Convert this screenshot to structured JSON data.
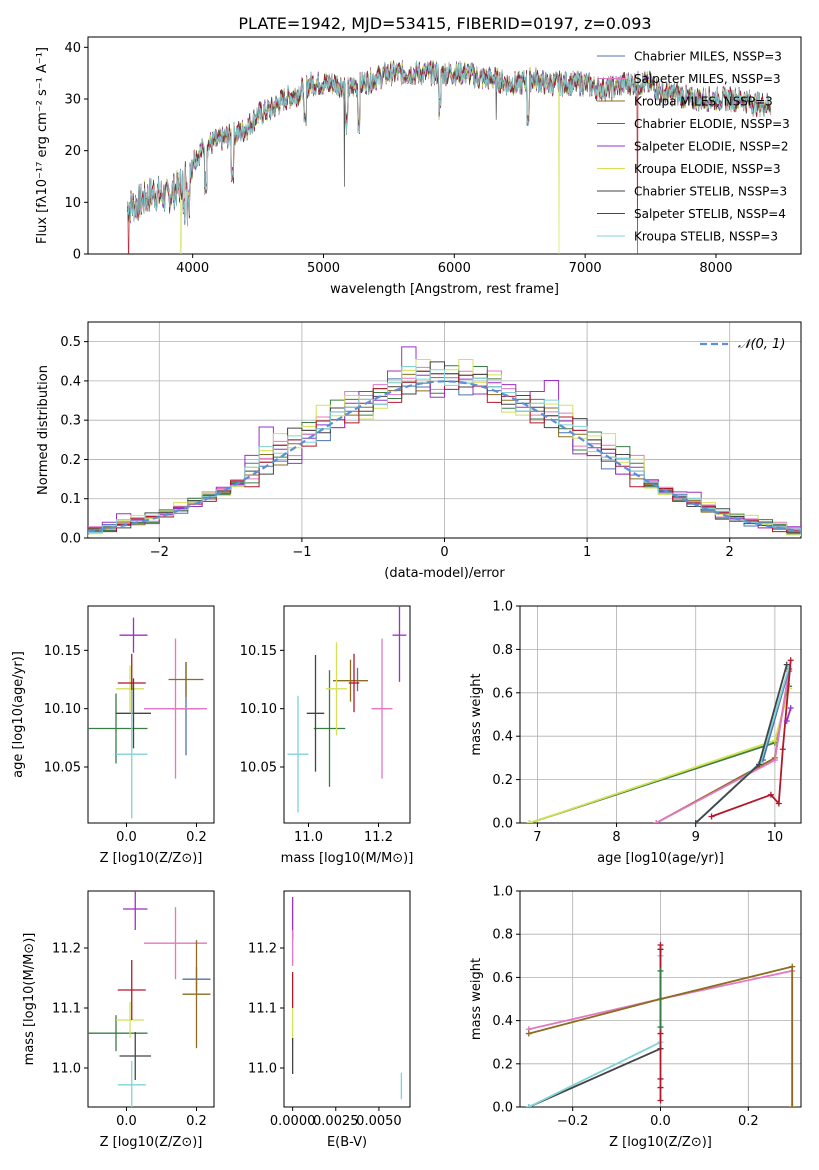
{
  "title": "PLATE=1942, MJD=53415, FIBERID=0197, z=0.093",
  "colors": {
    "Chabrier MILES": "#4c72b0",
    "Salpeter MILES": "#e377c2",
    "Kroupa MILES": "#8c6d1f",
    "Chabrier ELODIE": "#3a7d44",
    "Salpeter ELODIE": "#9b30c8",
    "Kroupa ELODIE": "#d4e157",
    "Chabrier STELIB": "#444444",
    "Salpeter STELIB": "#b2182b",
    "Kroupa STELIB": "#7fd3d6",
    "gauss": "#5b8fd8",
    "orange": "#e8782a"
  },
  "chart_data": [
    {
      "id": "spectrum",
      "type": "line",
      "xlabel": "wavelength [Angstrom, rest frame]",
      "ylabel": "Flux [fλ10⁻¹⁷ erg cm⁻² s⁻¹ A⁻¹]",
      "xlim": [
        3200,
        8650
      ],
      "ylim": [
        0,
        42
      ],
      "xticks": [
        4000,
        5000,
        6000,
        7000,
        8000
      ],
      "yticks": [
        0,
        10,
        20,
        30,
        40
      ],
      "legend_position": "top-right",
      "legend": [
        "Chabrier MILES, NSSP=3",
        "Salpeter MILES, NSSP=3",
        "Kroupa MILES, NSSP=3",
        "Chabrier ELODIE, NSSP=3",
        "Salpeter ELODIE, NSSP=2",
        "Kroupa ELODIE, NSSP=3",
        "Chabrier STELIB, NSSP=3",
        "Salpeter STELIB, NSSP=4",
        "Kroupa STELIB, NSSP=3"
      ],
      "continuum": [
        [
          3500,
          9
        ],
        [
          3600,
          10
        ],
        [
          3700,
          12
        ],
        [
          3800,
          11
        ],
        [
          3900,
          13
        ],
        [
          4000,
          18
        ],
        [
          4100,
          21
        ],
        [
          4200,
          22
        ],
        [
          4300,
          23
        ],
        [
          4400,
          24
        ],
        [
          4500,
          27
        ],
        [
          4600,
          28
        ],
        [
          4700,
          30
        ],
        [
          4800,
          31
        ],
        [
          4900,
          33
        ],
        [
          5000,
          33
        ],
        [
          5100,
          33
        ],
        [
          5200,
          32
        ],
        [
          5300,
          33
        ],
        [
          5400,
          34
        ],
        [
          5500,
          35
        ],
        [
          5600,
          35
        ],
        [
          5700,
          35
        ],
        [
          5800,
          35
        ],
        [
          5900,
          35
        ],
        [
          6000,
          35
        ],
        [
          6100,
          35
        ],
        [
          6200,
          34
        ],
        [
          6300,
          34
        ],
        [
          6400,
          33
        ],
        [
          6500,
          33
        ],
        [
          6600,
          34
        ],
        [
          6700,
          33
        ],
        [
          6800,
          33
        ],
        [
          6900,
          33
        ],
        [
          7000,
          33
        ],
        [
          7100,
          32
        ],
        [
          7200,
          32
        ],
        [
          7300,
          33
        ],
        [
          7400,
          33
        ],
        [
          7500,
          33
        ],
        [
          7600,
          31
        ],
        [
          7700,
          31
        ],
        [
          7800,
          30
        ],
        [
          7900,
          30
        ],
        [
          8000,
          30
        ],
        [
          8100,
          30
        ],
        [
          8200,
          30
        ],
        [
          8300,
          29
        ],
        [
          8400,
          29
        ]
      ],
      "absorption_lines": [
        3934,
        3969,
        4101,
        4304,
        4861,
        5175,
        5270,
        5890,
        6563
      ],
      "drops": [
        [
          3510,
          "Salpeter STELIB"
        ],
        [
          3910,
          "Kroupa ELODIE"
        ],
        [
          6800,
          "Kroupa ELODIE"
        ],
        [
          7400,
          "Salpeter STELIB"
        ]
      ]
    },
    {
      "id": "residuals",
      "type": "histogram",
      "xlabel": "(data-model)/error",
      "ylabel": "Normed distribution",
      "xlim": [
        -2.5,
        2.5
      ],
      "ylim": [
        0,
        0.55
      ],
      "xticks": [
        -2,
        -1,
        0,
        1,
        2
      ],
      "yticks": [
        0.0,
        0.1,
        0.2,
        0.3,
        0.4,
        0.5
      ],
      "grid": true,
      "legend_position": "top-right",
      "gauss_label": "𝒩(0, 1)",
      "bin_width": 0.1,
      "series": [
        {
          "name": "Chabrier MILES",
          "jitter": [
            0.01,
            -0.02,
            0.03,
            0.0,
            -0.01,
            0.02,
            0.01,
            -0.03,
            0.02,
            0.0
          ]
        },
        {
          "name": "Salpeter MILES",
          "jitter": [
            0.02,
            0.03,
            -0.01,
            0.02,
            0.04,
            -0.02,
            0.01,
            0.03,
            -0.02,
            0.05
          ]
        },
        {
          "name": "Kroupa MILES",
          "jitter": [
            -0.01,
            0.02,
            0.0,
            0.03,
            -0.02,
            0.01,
            0.02,
            0.0,
            0.03,
            -0.01
          ]
        },
        {
          "name": "Chabrier ELODIE",
          "jitter": [
            -0.03,
            0.01,
            -0.02,
            0.01,
            0.0,
            -0.03,
            0.04,
            0.02,
            0.05,
            0.03
          ]
        },
        {
          "name": "Salpeter ELODIE",
          "jitter": [
            0.03,
            -0.01,
            0.05,
            0.1,
            0.02,
            -0.04,
            0.0,
            0.01,
            -0.02,
            0.02
          ]
        },
        {
          "name": "Kroupa ELODIE",
          "jitter": [
            -0.04,
            -0.03,
            0.02,
            0.04,
            0.06,
            0.0,
            0.03,
            0.06,
            0.01,
            0.04
          ]
        },
        {
          "name": "Chabrier STELIB",
          "jitter": [
            -0.02,
            0.0,
            0.01,
            -0.02,
            0.03,
            0.05,
            0.02,
            -0.01,
            0.03,
            0.01
          ]
        },
        {
          "name": "Salpeter STELIB",
          "jitter": [
            0.0,
            0.02,
            -0.03,
            0.01,
            0.03,
            0.02,
            -0.02,
            0.02,
            0.0,
            -0.03
          ]
        },
        {
          "name": "Kroupa STELIB",
          "jitter": [
            0.01,
            -0.02,
            0.02,
            0.05,
            0.01,
            0.03,
            -0.01,
            0.0,
            0.02,
            0.01
          ]
        }
      ]
    },
    {
      "id": "age_vs_Z",
      "type": "scatter",
      "xlabel": "Z [log10(Z/Z⊙)]",
      "ylabel": "age  [log10(age/yr)]",
      "xlim": [
        -0.11,
        0.25
      ],
      "ylim": [
        10.002,
        10.188
      ],
      "xticks": [
        0.0,
        0.2
      ],
      "yticks": [
        10.05,
        10.1,
        10.15
      ],
      "points": [
        {
          "name": "Chabrier MILES",
          "x": 0.17,
          "y": 10.1,
          "xerr": 0.04,
          "yerr": 0.04
        },
        {
          "name": "Salpeter MILES",
          "x": 0.14,
          "y": 10.1,
          "xerr": 0.09,
          "yerr": 0.06
        },
        {
          "name": "Kroupa MILES",
          "x": 0.17,
          "y": 10.125,
          "xerr": 0.05,
          "yerr": 0.015
        },
        {
          "name": "Chabrier ELODIE",
          "x": -0.03,
          "y": 10.083,
          "xerr": 0.09,
          "yerr": 0.03
        },
        {
          "name": "Salpeter ELODIE",
          "x": 0.02,
          "y": 10.163,
          "xerr": 0.04,
          "yerr": 0.015
        },
        {
          "name": "Kroupa ELODIE",
          "x": 0.01,
          "y": 10.117,
          "xerr": 0.04,
          "yerr": 0.02
        },
        {
          "name": "Chabrier STELIB",
          "x": 0.02,
          "y": 10.096,
          "xerr": 0.05,
          "yerr": 0.03
        },
        {
          "name": "Salpeter STELIB",
          "x": 0.015,
          "y": 10.122,
          "xerr": 0.04,
          "yerr": 0.025
        },
        {
          "name": "Kroupa STELIB",
          "x": 0.015,
          "y": 10.061,
          "xerr": 0.045,
          "yerr": 0.055
        }
      ]
    },
    {
      "id": "age_vs_mass",
      "type": "scatter",
      "xlabel": "mass [log10(M/M⊙)]",
      "xlim": [
        10.93,
        11.29
      ],
      "ylim": [
        10.002,
        10.188
      ],
      "xticks": [
        11.0,
        11.2
      ],
      "yticks": [
        10.05,
        10.1,
        10.15
      ],
      "points": [
        {
          "name": "Chabrier MILES",
          "x": 11.14,
          "y": 10.125,
          "xerr": 0.0,
          "yerr": 0.01
        },
        {
          "name": "Salpeter MILES",
          "x": 11.21,
          "y": 10.1,
          "xerr": 0.03,
          "yerr": 0.06
        },
        {
          "name": "Kroupa MILES",
          "x": 11.12,
          "y": 10.124,
          "xerr": 0.05,
          "yerr": 0.018
        },
        {
          "name": "Chabrier ELODIE",
          "x": 11.06,
          "y": 10.083,
          "xerr": 0.045,
          "yerr": 0.05
        },
        {
          "name": "Salpeter ELODIE",
          "x": 11.26,
          "y": 10.163,
          "xerr": 0.02,
          "yerr": 0.04
        },
        {
          "name": "Kroupa ELODIE",
          "x": 11.08,
          "y": 10.117,
          "xerr": 0.03,
          "yerr": 0.04
        },
        {
          "name": "Chabrier STELIB",
          "x": 11.02,
          "y": 10.096,
          "xerr": 0.025,
          "yerr": 0.05
        },
        {
          "name": "Salpeter STELIB",
          "x": 11.13,
          "y": 10.122,
          "xerr": 0.015,
          "yerr": 0.025
        },
        {
          "name": "Kroupa STELIB",
          "x": 10.97,
          "y": 10.061,
          "xerr": 0.03,
          "yerr": 0.05
        }
      ]
    },
    {
      "id": "mass_vs_Z",
      "type": "scatter",
      "xlabel": "Z [log10(Z/Z⊙)]",
      "ylabel": "mass [log10(M/M⊙)]",
      "xlim": [
        -0.11,
        0.25
      ],
      "ylim": [
        10.935,
        11.295
      ],
      "xticks": [
        0.0,
        0.2
      ],
      "yticks": [
        11.0,
        11.1,
        11.2
      ],
      "points": [
        {
          "name": "Chabrier MILES",
          "x": 0.2,
          "y": 11.148,
          "xerr": 0.04,
          "yerr": 0.02
        },
        {
          "name": "Salpeter MILES",
          "x": 0.14,
          "y": 11.208,
          "xerr": 0.09,
          "yerr": 0.06
        },
        {
          "name": "Kroupa MILES",
          "x": 0.2,
          "y": 11.123,
          "xerr": 0.04,
          "yerr": 0.09
        },
        {
          "name": "Chabrier ELODIE",
          "x": -0.03,
          "y": 11.058,
          "xerr": 0.09,
          "yerr": 0.03
        },
        {
          "name": "Salpeter ELODIE",
          "x": 0.025,
          "y": 11.265,
          "xerr": 0.035,
          "yerr": 0.035
        },
        {
          "name": "Kroupa ELODIE",
          "x": 0.01,
          "y": 11.08,
          "xerr": 0.04,
          "yerr": 0.03
        },
        {
          "name": "Chabrier STELIB",
          "x": 0.025,
          "y": 11.02,
          "xerr": 0.045,
          "yerr": 0.04
        },
        {
          "name": "Salpeter STELIB",
          "x": 0.015,
          "y": 11.13,
          "xerr": 0.04,
          "yerr": 0.05
        },
        {
          "name": "Kroupa STELIB",
          "x": 0.015,
          "y": 10.972,
          "xerr": 0.04,
          "yerr": 0.04
        }
      ]
    },
    {
      "id": "mass_vs_ebv",
      "type": "scatter",
      "xlabel": "E(B-V)",
      "xlim": [
        -0.0005,
        0.0068
      ],
      "ylim": [
        10.935,
        11.295
      ],
      "xticks": [
        0.0,
        0.0025,
        0.005
      ],
      "xticklabels": [
        "0.0000",
        "0.0025",
        "0.0050"
      ],
      "yticks": [
        11.0,
        11.1,
        11.2
      ],
      "points": [
        {
          "name": "Salpeter ELODIE",
          "x": 0.0,
          "y": 11.25,
          "yerr": 0.035
        },
        {
          "name": "Salpeter MILES",
          "x": 0.0,
          "y": 11.2,
          "yerr": 0.03
        },
        {
          "name": "Salpeter STELIB",
          "x": 0.0,
          "y": 11.13,
          "yerr": 0.03
        },
        {
          "name": "Kroupa ELODIE",
          "x": 0.0,
          "y": 11.07,
          "yerr": 0.03
        },
        {
          "name": "Chabrier STELIB",
          "x": 0.0,
          "y": 11.02,
          "yerr": 0.03
        },
        {
          "name": "Kroupa STELIB",
          "x": 0.0063,
          "y": 10.97,
          "yerr": 0.022
        }
      ]
    },
    {
      "id": "mass_weight_vs_age",
      "type": "line",
      "xlabel": "age  [log10(age/yr)]",
      "ylabel": "mass weight",
      "xlim": [
        6.78,
        10.33
      ],
      "ylim": [
        0,
        1
      ],
      "xticks": [
        7,
        8,
        9,
        10
      ],
      "yticks": [
        0.0,
        0.2,
        0.4,
        0.6,
        0.8,
        1.0
      ],
      "grid": true,
      "series": [
        {
          "name": "Chabrier ELODIE",
          "points": [
            [
              6.9,
              0.0
            ],
            [
              10.0,
              0.37
            ],
            [
              10.18,
              0.63
            ]
          ]
        },
        {
          "name": "Kroupa ELODIE",
          "points": [
            [
              6.9,
              0.0
            ],
            [
              10.0,
              0.38
            ],
            [
              10.18,
              0.62
            ]
          ]
        },
        {
          "name": "Kroupa MILES",
          "points": [
            [
              8.5,
              0.0
            ],
            [
              10.0,
              0.3
            ],
            [
              10.18,
              0.7
            ]
          ]
        },
        {
          "name": "Salpeter MILES",
          "points": [
            [
              8.5,
              0.0
            ],
            [
              10.0,
              0.29
            ],
            [
              10.18,
              0.71
            ]
          ]
        },
        {
          "name": "Chabrier MILES",
          "points": [
            [
              9.0,
              0.0
            ],
            [
              9.85,
              0.29
            ],
            [
              10.18,
              0.71
            ]
          ]
        },
        {
          "name": "Kroupa STELIB",
          "points": [
            [
              9.0,
              0.0
            ],
            [
              9.82,
              0.28
            ],
            [
              10.18,
              0.72
            ]
          ]
        },
        {
          "name": "Chabrier STELIB",
          "points": [
            [
              9.0,
              0.0
            ],
            [
              9.8,
              0.27
            ],
            [
              10.15,
              0.73
            ]
          ]
        },
        {
          "name": "Salpeter STELIB",
          "points": [
            [
              9.2,
              0.03
            ],
            [
              9.95,
              0.13
            ],
            [
              10.05,
              0.09
            ],
            [
              10.1,
              0.34
            ],
            [
              10.2,
              0.75
            ]
          ]
        },
        {
          "name": "Salpeter ELODIE",
          "points": [
            [
              10.15,
              0.47
            ],
            [
              10.2,
              0.53
            ]
          ]
        }
      ]
    },
    {
      "id": "mass_weight_vs_Z",
      "type": "line",
      "xlabel": "Z [log10(Z/Z⊙)]",
      "ylabel": "mass weight",
      "xlim": [
        -0.32,
        0.32
      ],
      "ylim": [
        0,
        1
      ],
      "xticks": [
        -0.2,
        0.0,
        0.2
      ],
      "yticks": [
        0.0,
        0.2,
        0.4,
        0.6,
        0.8,
        1.0
      ],
      "grid": true,
      "series": [
        {
          "name": "Salpeter MILES",
          "points": [
            [
              -0.3,
              0.36
            ],
            [
              0.0,
              0.5
            ],
            [
              0.3,
              0.63
            ],
            [
              0.3,
              0.0
            ]
          ]
        },
        {
          "name": "Kroupa MILES",
          "points": [
            [
              -0.3,
              0.34
            ],
            [
              0.0,
              0.5
            ],
            [
              0.3,
              0.65
            ],
            [
              0.3,
              0.0
            ]
          ]
        },
        {
          "name": "Chabrier STELIB",
          "points": [
            [
              -0.3,
              0.0
            ],
            [
              0.0,
              0.27
            ],
            [
              0.0,
              0.73
            ]
          ]
        },
        {
          "name": "Kroupa STELIB",
          "points": [
            [
              -0.3,
              0.0
            ],
            [
              0.0,
              0.3
            ],
            [
              0.0,
              0.7
            ]
          ]
        },
        {
          "name": "Salpeter STELIB",
          "points": [
            [
              0.0,
              0.03
            ],
            [
              0.0,
              0.13
            ],
            [
              0.0,
              0.09
            ],
            [
              0.0,
              0.34
            ],
            [
              0.0,
              0.75
            ]
          ]
        },
        {
          "name": "Chabrier ELODIE",
          "points": [
            [
              0.0,
              0.37
            ],
            [
              0.0,
              0.63
            ]
          ]
        }
      ]
    }
  ]
}
